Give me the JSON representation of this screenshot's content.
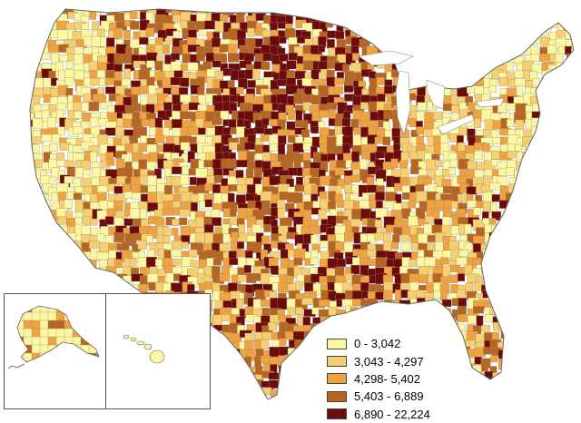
{
  "legend": {
    "items": [
      {
        "label": "0 - 3,042",
        "color": "#fdf7a2"
      },
      {
        "label": "3,043 - 4,297",
        "color": "#f8cf6e"
      },
      {
        "label": "4,298- 5,402",
        "color": "#f0a23f"
      },
      {
        "label": "5,403 - 6,889",
        "color": "#b8651f"
      },
      {
        "label": "6,890 - 22,224",
        "color": "#6e0b09"
      }
    ]
  },
  "colors": {
    "boundary": "#8c8c8c",
    "background": "#ffffff"
  },
  "insets": [
    "alaska",
    "hawaii"
  ]
}
